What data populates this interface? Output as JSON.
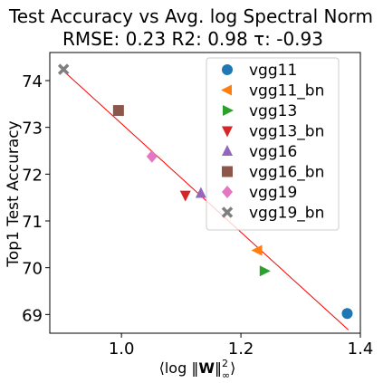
{
  "chart_data": {
    "type": "scatter",
    "title": "Test Accuracy vs Avg. log Spectral Norm",
    "subtitle": "RMSE: 0.23 R2: 0.98 τ: -0.93",
    "xlabel": "⟨log ‖W‖²∞⟩",
    "ylabel": "Top1 Test Accuracy",
    "xlim": [
      0.88,
      1.4
    ],
    "ylim": [
      68.6,
      74.6
    ],
    "x_ticks": [
      1.0,
      1.2,
      1.4
    ],
    "x_tick_labels": [
      "1.0",
      "1.2",
      "1.4"
    ],
    "y_ticks": [
      69,
      70,
      71,
      72,
      73,
      74
    ],
    "y_tick_labels": [
      "69",
      "70",
      "71",
      "72",
      "73",
      "74"
    ],
    "grid": false,
    "legend_position": "top-right",
    "fit_line": {
      "x": [
        0.9,
        1.38
      ],
      "y": [
        74.24,
        68.67
      ],
      "color": "#ff0000"
    },
    "series": [
      {
        "name": "vgg11",
        "marker": "circle",
        "color": "#1f77b4",
        "x": [
          1.378
        ],
        "y": [
          69.02
        ]
      },
      {
        "name": "vgg11_bn",
        "marker": "triangle-left",
        "color": "#ff7f0e",
        "x": [
          1.228
        ],
        "y": [
          70.37
        ]
      },
      {
        "name": "vgg13",
        "marker": "triangle-right",
        "color": "#2ca02c",
        "x": [
          1.239
        ],
        "y": [
          69.93
        ]
      },
      {
        "name": "vgg13_bn",
        "marker": "triangle-down",
        "color": "#d62728",
        "x": [
          1.107
        ],
        "y": [
          71.55
        ]
      },
      {
        "name": "vgg16",
        "marker": "triangle-up",
        "color": "#9467bd",
        "x": [
          1.133
        ],
        "y": [
          71.59
        ]
      },
      {
        "name": "vgg16_bn",
        "marker": "square",
        "color": "#8c564b",
        "x": [
          0.995
        ],
        "y": [
          73.36
        ]
      },
      {
        "name": "vgg19",
        "marker": "diamond",
        "color": "#e377c2",
        "x": [
          1.051
        ],
        "y": [
          72.38
        ]
      },
      {
        "name": "vgg19_bn",
        "marker": "x",
        "color": "#7f7f7f",
        "x": [
          0.903
        ],
        "y": [
          74.24
        ]
      }
    ]
  }
}
